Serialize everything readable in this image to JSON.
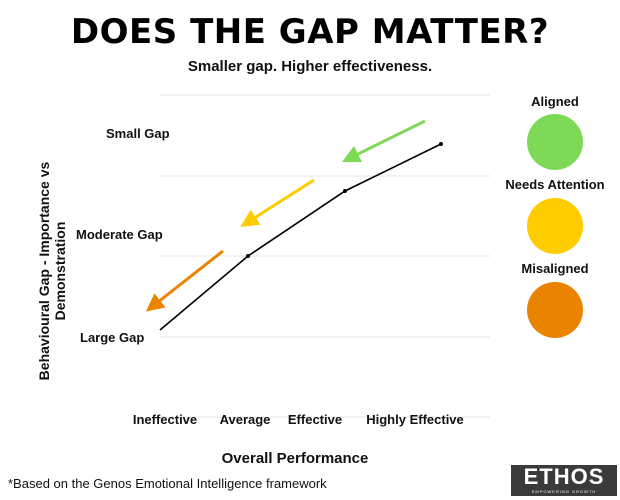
{
  "title": "DOES THE GAP MATTER?",
  "subtitle": "Smaller gap. Higher effectiveness.",
  "y_axis": {
    "label": "Behavioural Gap - Importance vs Demonstration",
    "ticks": [
      "Small Gap",
      "Moderate Gap",
      "Large Gap"
    ]
  },
  "x_axis": {
    "label": "Overall Performance",
    "ticks": [
      "Ineffective",
      "Average",
      "Effective",
      "Highly Effective"
    ]
  },
  "legend": [
    {
      "label": "Aligned",
      "color": "#7ed957"
    },
    {
      "label": "Needs Attention",
      "color": "#ffcc00"
    },
    {
      "label": "Misaligned",
      "color": "#ea8400"
    }
  ],
  "footnote": "*Based on the Genos Emotional Intelligence framework",
  "logo": {
    "name": "ETHOS",
    "tagline": "EMPOWERING GROWTH"
  }
}
